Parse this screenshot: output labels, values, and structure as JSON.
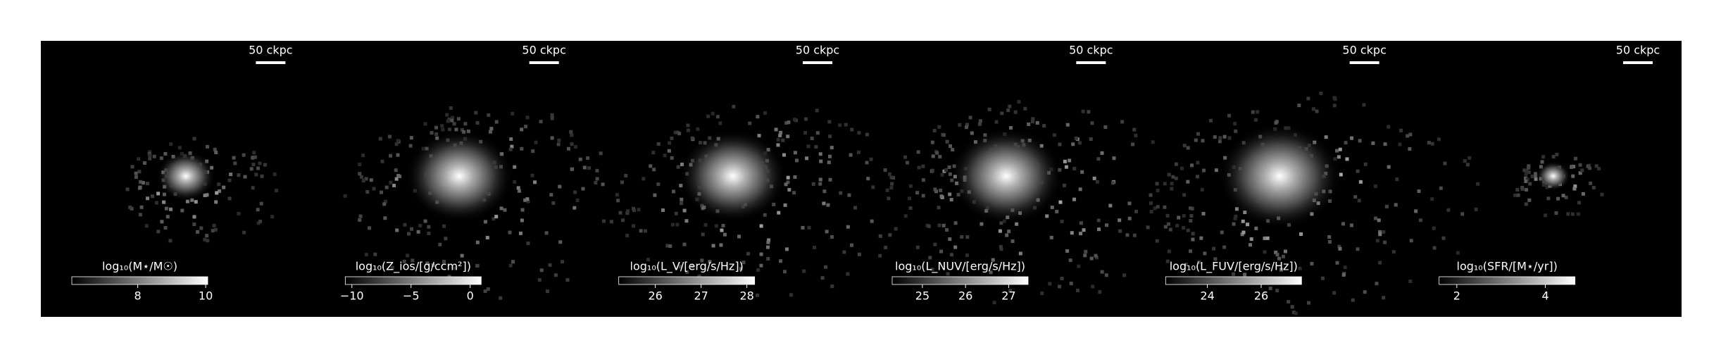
{
  "chart_data": [
    {
      "type": "image",
      "scale_label": "50 ckpc",
      "colorbar_label": "log₁₀(M⋆/M☉)",
      "clim": [
        6.06,
        10.06
      ],
      "colorbar_ticks": [
        8,
        10
      ]
    },
    {
      "type": "image",
      "scale_label": "50 ckpc",
      "colorbar_label": "log₁₀(Z_ios/[g/ccm²])",
      "clim": [
        -10.56,
        0.93
      ],
      "colorbar_ticks": [
        {
          "value": -10,
          "label": "−10"
        },
        {
          "value": -5,
          "label": "−5"
        },
        0
      ]
    },
    {
      "type": "image",
      "scale_label": "50 ckpc",
      "colorbar_label": "log₁₀(L_V/[erg/s/Hz])",
      "clim": [
        25.2,
        28.17
      ],
      "colorbar_ticks": [
        26,
        27,
        28
      ]
    },
    {
      "type": "image",
      "scale_label": "50 ckpc",
      "colorbar_label": "log₁₀(L_NUV/[erg/s/Hz])",
      "clim": [
        24.3,
        27.45
      ],
      "colorbar_ticks": [
        25,
        26,
        27
      ]
    },
    {
      "type": "image",
      "scale_label": "50 ckpc",
      "colorbar_label": "log₁₀(L_FUV/[erg/s/Hz])",
      "clim": [
        22.45,
        27.5
      ],
      "colorbar_ticks": [
        24,
        26
      ]
    },
    {
      "type": "image",
      "scale_label": "50 ckpc",
      "colorbar_label": "log₁₀(SFR/[M⋆/yr])",
      "clim": [
        1.6,
        4.67
      ],
      "colorbar_ticks": [
        2,
        4
      ]
    }
  ]
}
